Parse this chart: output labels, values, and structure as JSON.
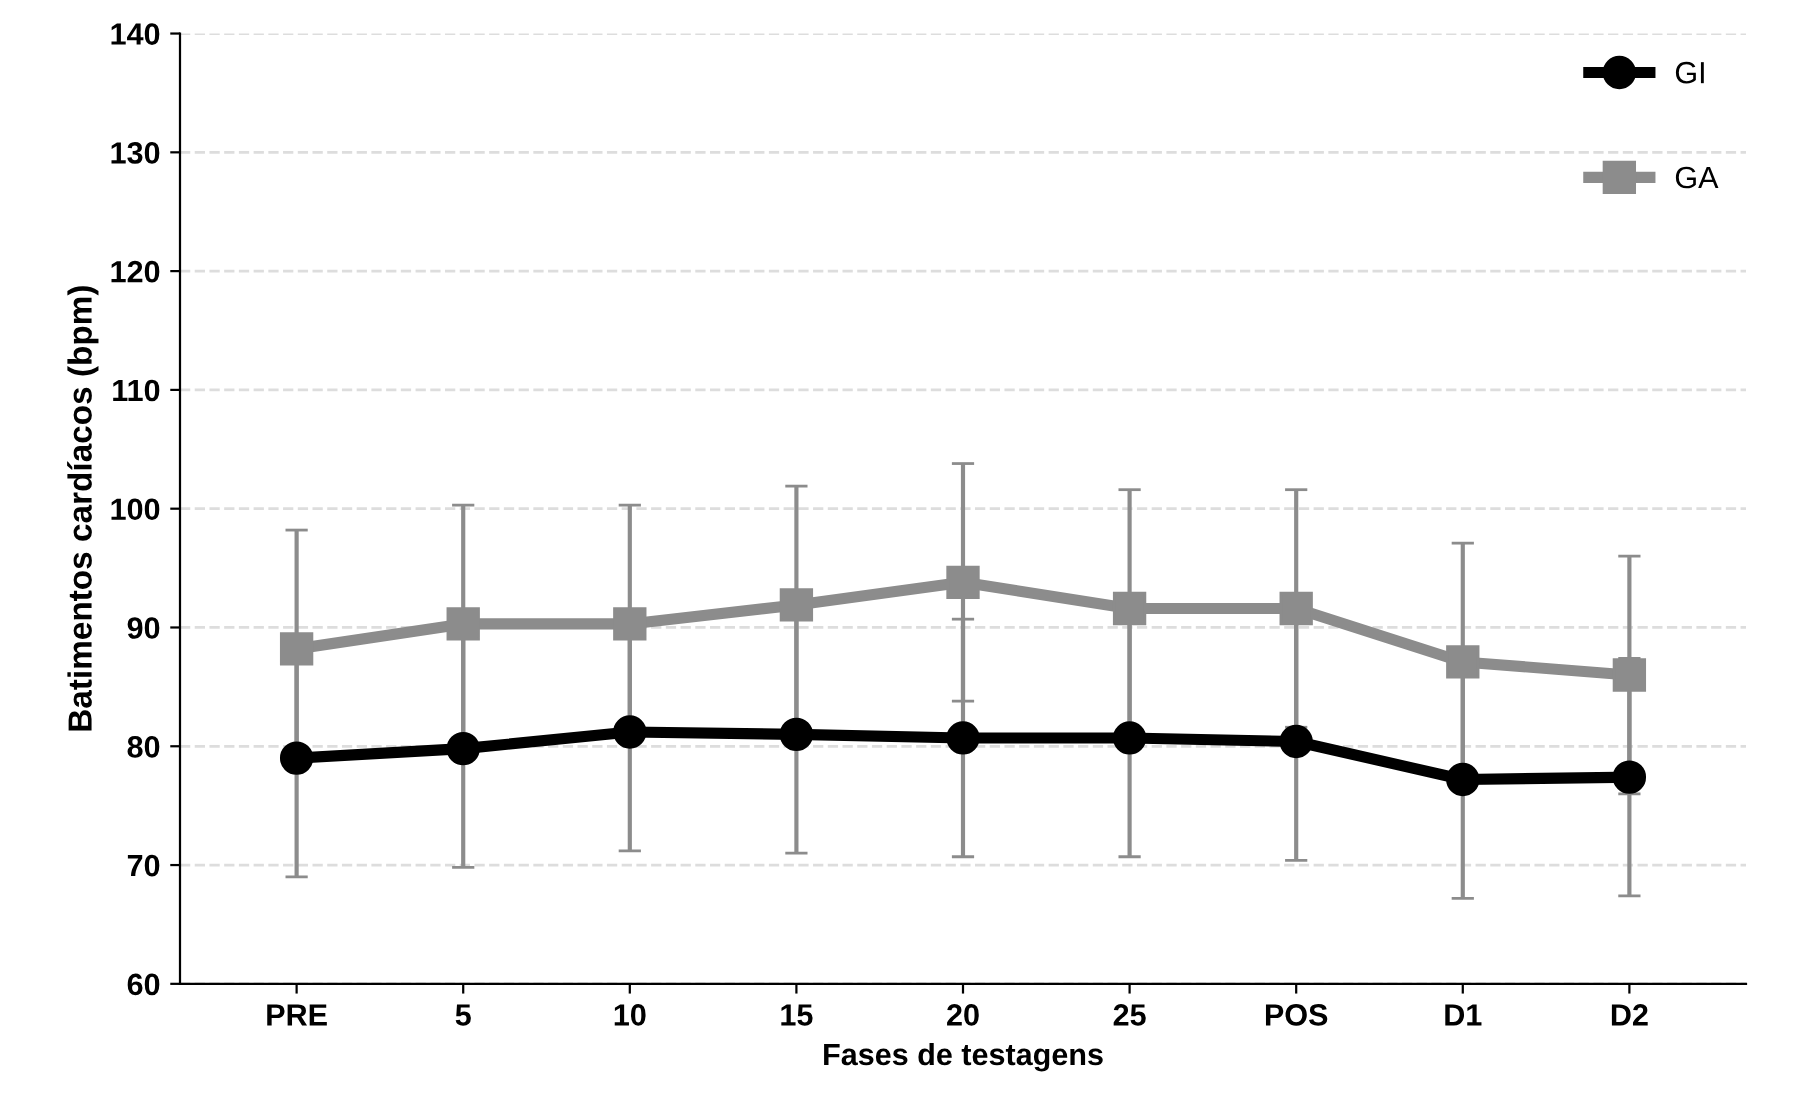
{
  "chart_data": {
    "type": "line",
    "xlabel": "Fases de testagens",
    "ylabel": "Batimentos cardíacos (bpm)",
    "categories": [
      "PRE",
      "5",
      "10",
      "15",
      "20",
      "25",
      "POS",
      "D1",
      "D2"
    ],
    "series": [
      {
        "name": "GI",
        "color": "#000000",
        "marker": "circle",
        "values": [
          79,
          79.8,
          81.2,
          81,
          80.7,
          80.7,
          80.4,
          77.2,
          77.4
        ],
        "errors": [
          10,
          10,
          10,
          10,
          10,
          10,
          10,
          10,
          10
        ]
      },
      {
        "name": "GA",
        "color": "#8c8c8c",
        "marker": "square",
        "values": [
          88.2,
          90.3,
          90.3,
          91.9,
          93.8,
          91.6,
          91.6,
          87.1,
          86
        ],
        "errors": [
          10,
          10,
          10,
          10,
          10,
          10,
          10,
          10,
          10
        ]
      }
    ],
    "ylim": [
      60,
      140
    ],
    "yticks": [
      60,
      70,
      80,
      90,
      100,
      110,
      120,
      130,
      140
    ],
    "grid": "y",
    "legend": "top right",
    "line_style": "solid"
  }
}
